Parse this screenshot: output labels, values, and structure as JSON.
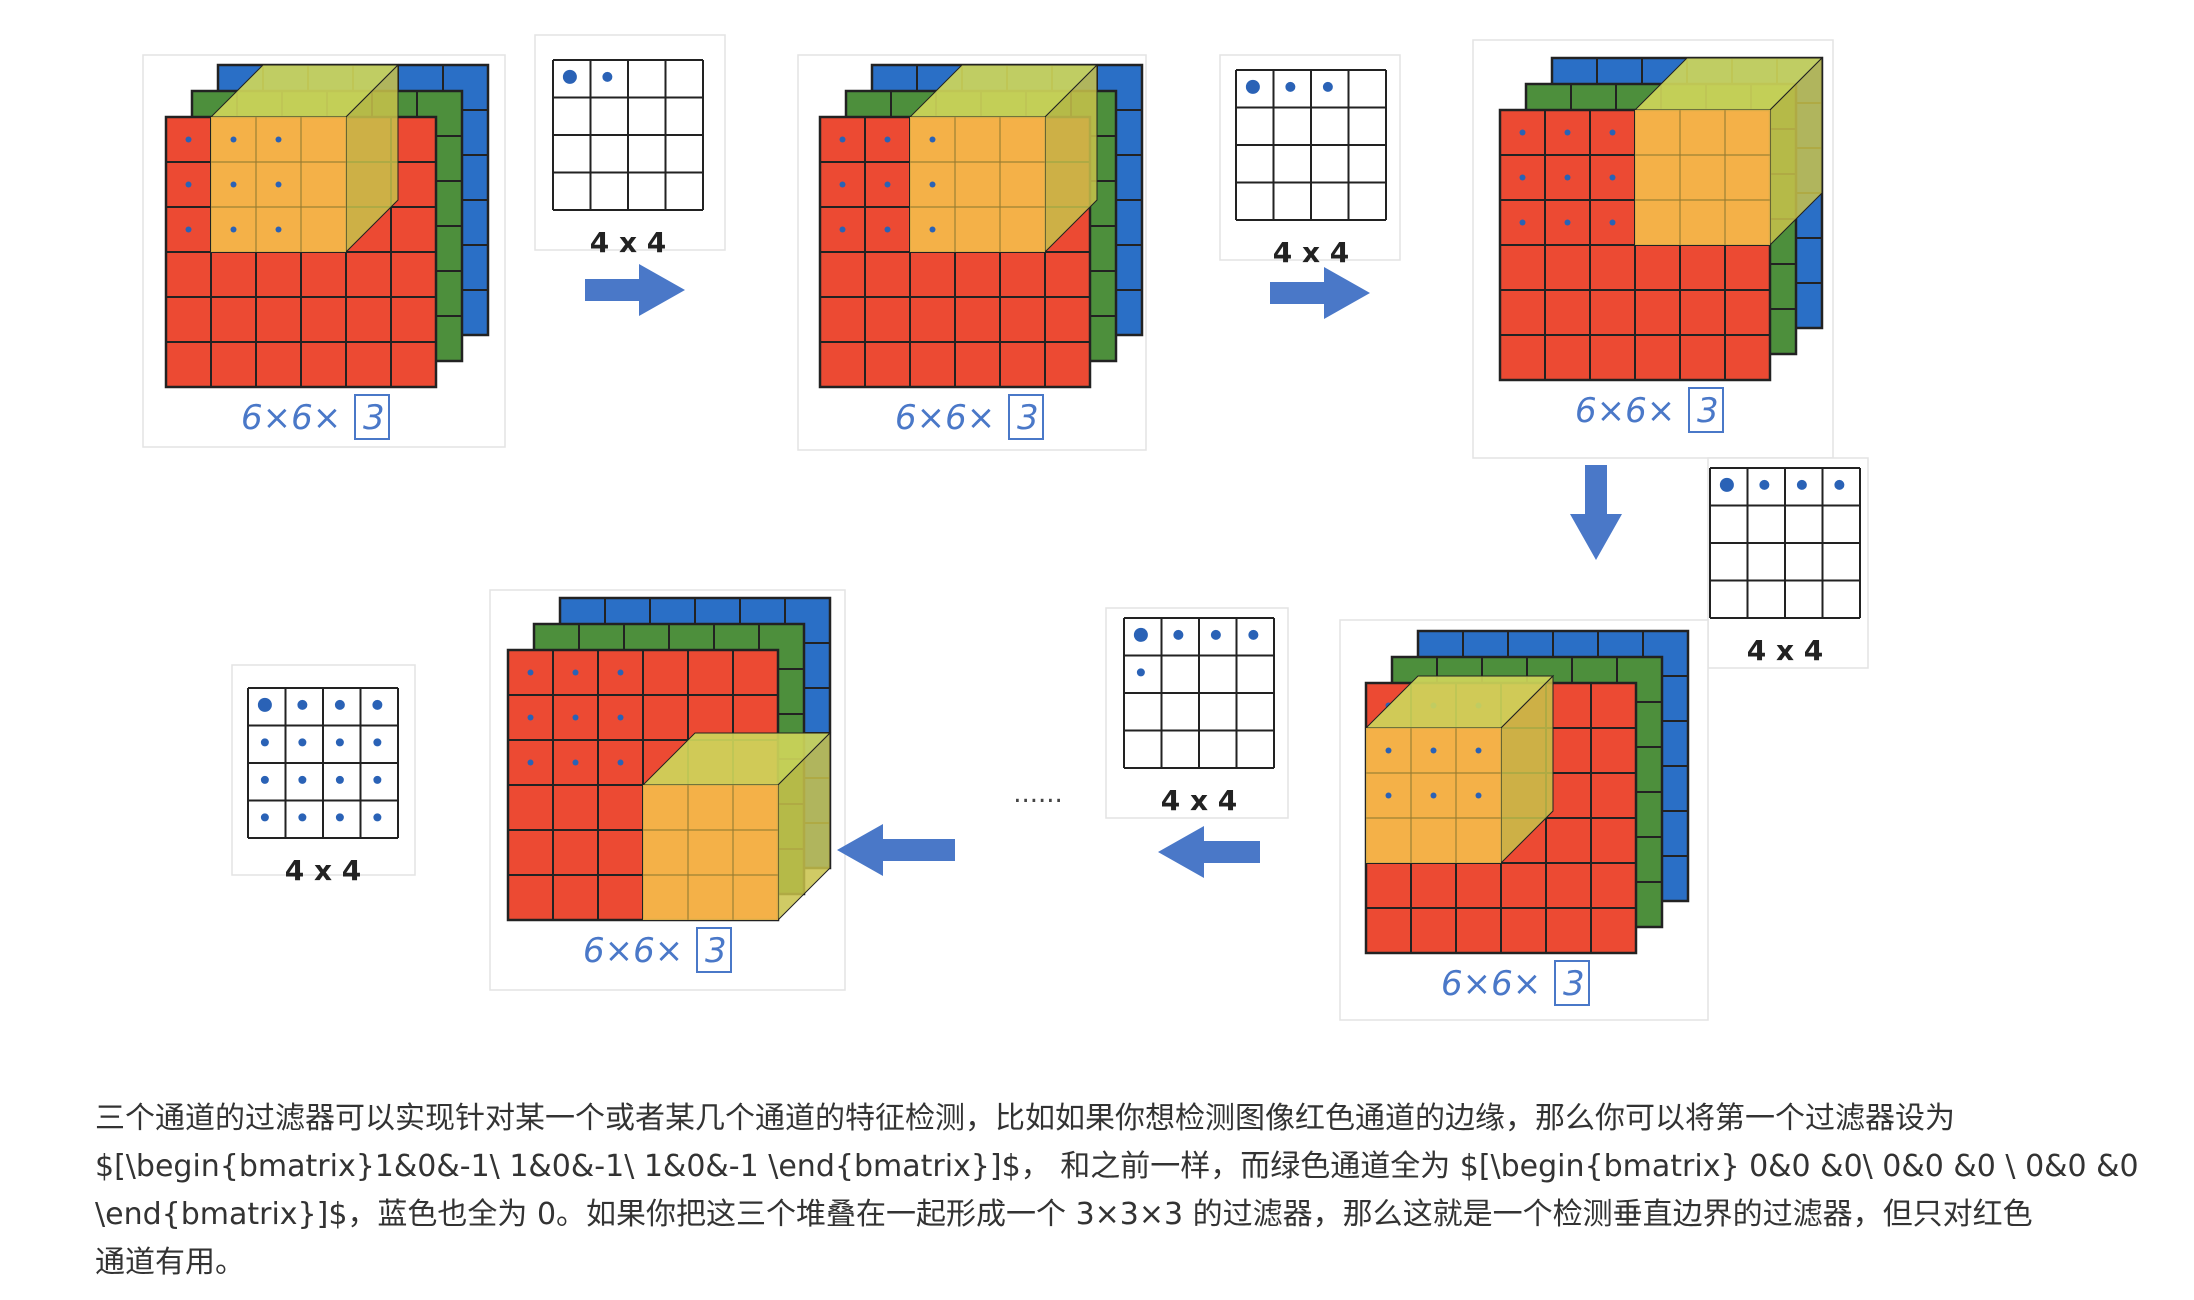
{
  "figure": {
    "cube_label": "6×6×3",
    "cube_label_dims": "6×6×",
    "cube_label_boxed": "3",
    "filter_label": "4 x 4",
    "ellipsis": "......",
    "colors": {
      "red": "#ec4a33",
      "green": "#4d8f3c",
      "blue": "#2a6fc6",
      "cube_front": "#f5bf4b",
      "cube_top": "#cdd55a",
      "cube_side": "#c8c24a",
      "arrow": "#4a78c8",
      "dot": "#2a62b6",
      "label_ink": "#4a78c8",
      "grid_line": "#222222"
    },
    "stages": [
      {
        "name": "stage-1",
        "filled_cells": 2
      },
      {
        "name": "stage-2",
        "filled_cells": 3
      },
      {
        "name": "stage-3",
        "filled_cells": 4
      },
      {
        "name": "stage-4",
        "filled_cells": 5
      },
      {
        "name": "stage-5",
        "filled_cells": 16
      }
    ]
  },
  "text": {
    "line1": "三个通道的过滤器可以实现针对某一个或者某几个通道的特征检测，比如如果你想检测图像红色通道的边缘，那么你可以将第一个过滤器设为",
    "line2": "$[\\begin{bmatrix}1&0&-1\\ 1&0&-1\\ 1&0&-1 \\end{bmatrix}]$， 和之前一样，而绿色通道全为 $[\\begin{bmatrix} 0&0 &0\\ 0&0 &0 \\ 0&0 &0",
    "line3": "\\end{bmatrix}]$，蓝色也全为 0。如果你把这三个堆叠在一起形成一个 3×3×3 的过滤器，那么这就是一个检测垂直边界的过滤器，但只对红色",
    "line4": "通道有用。"
  }
}
